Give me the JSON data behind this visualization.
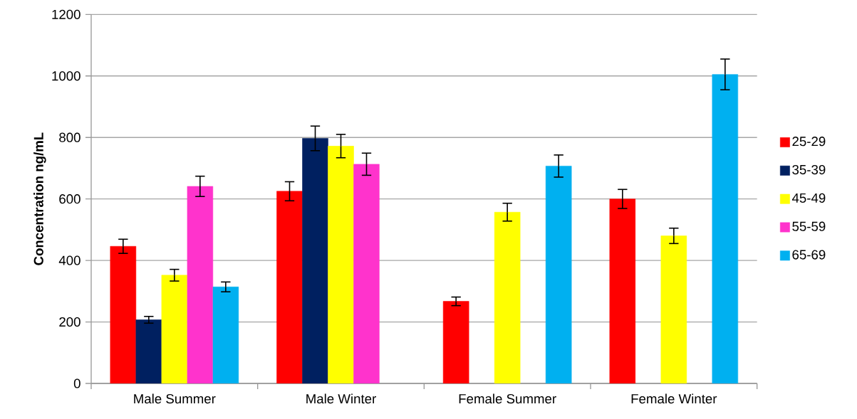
{
  "chart_data": {
    "type": "bar",
    "ylabel": "Concentration ng/mL",
    "categories": [
      "Male Summer",
      "Male Winter",
      "Female Summer",
      "Female Winter"
    ],
    "series": [
      {
        "name": "25-29",
        "color": "#ff0000",
        "values": [
          446,
          625,
          267,
          600
        ],
        "errors": [
          23,
          31,
          14,
          31
        ]
      },
      {
        "name": "35-39",
        "color": "#002060",
        "values": [
          207,
          797,
          null,
          null
        ],
        "errors": [
          11,
          40,
          null,
          null
        ]
      },
      {
        "name": "45-49",
        "color": "#ffff00",
        "values": [
          352,
          772,
          557,
          480
        ],
        "errors": [
          19,
          38,
          29,
          25
        ]
      },
      {
        "name": "55-59",
        "color": "#ff33cc",
        "values": [
          641,
          713,
          null,
          null
        ],
        "errors": [
          33,
          36,
          null,
          null
        ]
      },
      {
        "name": "65-69",
        "color": "#00b0f0",
        "values": [
          314,
          null,
          707,
          1005
        ],
        "errors": [
          16,
          null,
          36,
          50
        ]
      }
    ],
    "ylim": [
      0,
      1200
    ],
    "yticks": [
      0,
      200,
      400,
      600,
      800,
      1000,
      1200
    ],
    "grid": "y",
    "legend": "right"
  }
}
